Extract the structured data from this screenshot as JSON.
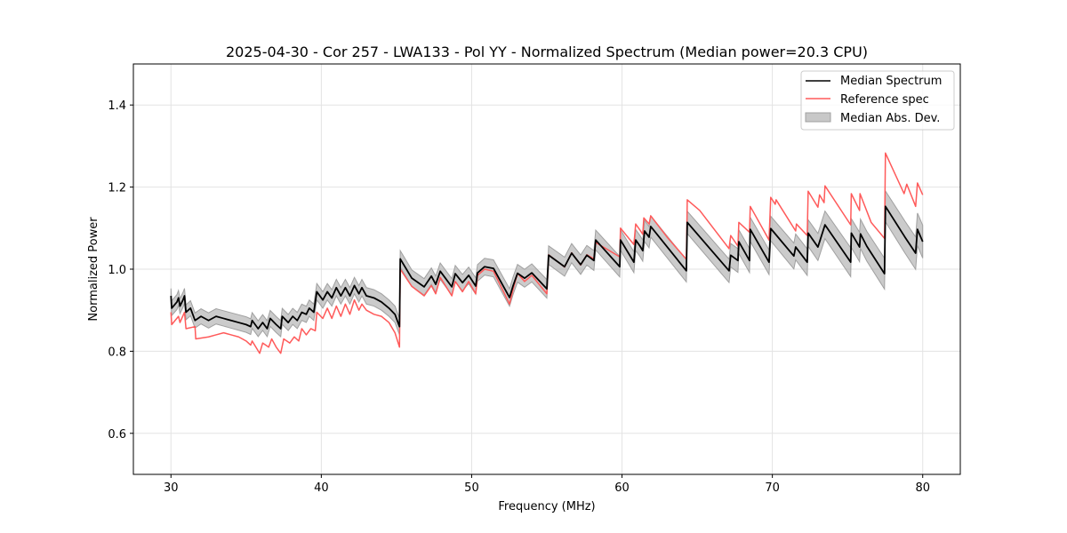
{
  "chart_data": {
    "type": "line",
    "title": "2025-04-30 - Cor 257 - LWA133 - Pol YY - Normalized Spectrum (Median power=20.3 CPU)",
    "xlabel": "Frequency (MHz)",
    "ylabel": "Normalized Power",
    "xlim": [
      27.5,
      82.5
    ],
    "ylim": [
      0.5,
      1.5
    ],
    "xticks": [
      30,
      40,
      50,
      60,
      70,
      80
    ],
    "yticks": [
      0.6,
      0.8,
      1.0,
      1.2,
      1.4
    ],
    "ytick_labels": [
      "0.6",
      "0.8",
      "1.0",
      "1.2",
      "1.4"
    ],
    "grid": true,
    "legend_placement": "top-right",
    "colors": {
      "median": "#000000",
      "reference": "#ff5a5a",
      "mad": "#a0a0a0"
    },
    "legend": [
      "Median Spectrum",
      "Reference spec",
      "Median Abs. Dev."
    ],
    "series": [
      {
        "name": "Median Spectrum",
        "points": [
          [
            30.0,
            0.935
          ],
          [
            30.05,
            0.905
          ],
          [
            30.4,
            0.92
          ],
          [
            30.5,
            0.93
          ],
          [
            30.6,
            0.91
          ],
          [
            30.8,
            0.925
          ],
          [
            30.9,
            0.935
          ],
          [
            31.0,
            0.895
          ],
          [
            31.3,
            0.905
          ],
          [
            31.6,
            0.875
          ],
          [
            32.0,
            0.885
          ],
          [
            32.5,
            0.875
          ],
          [
            33.0,
            0.885
          ],
          [
            33.5,
            0.88
          ],
          [
            34.0,
            0.875
          ],
          [
            34.5,
            0.87
          ],
          [
            35.0,
            0.865
          ],
          [
            35.3,
            0.86
          ],
          [
            35.4,
            0.875
          ],
          [
            35.8,
            0.855
          ],
          [
            36.1,
            0.87
          ],
          [
            36.4,
            0.855
          ],
          [
            36.6,
            0.88
          ],
          [
            37.0,
            0.865
          ],
          [
            37.3,
            0.855
          ],
          [
            37.4,
            0.885
          ],
          [
            37.8,
            0.87
          ],
          [
            38.1,
            0.885
          ],
          [
            38.4,
            0.875
          ],
          [
            38.7,
            0.895
          ],
          [
            39.0,
            0.89
          ],
          [
            39.2,
            0.905
          ],
          [
            39.5,
            0.895
          ],
          [
            39.7,
            0.945
          ],
          [
            40.1,
            0.925
          ],
          [
            40.4,
            0.945
          ],
          [
            40.7,
            0.93
          ],
          [
            41.0,
            0.955
          ],
          [
            41.3,
            0.935
          ],
          [
            41.6,
            0.955
          ],
          [
            41.9,
            0.935
          ],
          [
            42.2,
            0.96
          ],
          [
            42.5,
            0.94
          ],
          [
            42.7,
            0.955
          ],
          [
            43.0,
            0.935
          ],
          [
            43.5,
            0.93
          ],
          [
            44.0,
            0.92
          ],
          [
            44.5,
            0.905
          ],
          [
            44.9,
            0.89
          ],
          [
            45.2,
            0.86
          ],
          [
            45.25,
            1.025
          ],
          [
            46.02,
            0.978
          ],
          [
            46.84,
            0.957
          ],
          [
            47.32,
            0.983
          ],
          [
            47.61,
            0.963
          ],
          [
            47.91,
            0.995
          ],
          [
            48.68,
            0.957
          ],
          [
            48.91,
            0.989
          ],
          [
            49.39,
            0.967
          ],
          [
            49.8,
            0.985
          ],
          [
            50.27,
            0.959
          ],
          [
            50.39,
            0.991
          ],
          [
            50.86,
            1.006
          ],
          [
            51.45,
            1.002
          ],
          [
            52.52,
            0.931
          ],
          [
            52.75,
            0.959
          ],
          [
            53.05,
            0.99
          ],
          [
            53.52,
            0.978
          ],
          [
            54.0,
            0.991
          ],
          [
            55.0,
            0.952
          ],
          [
            55.12,
            1.034
          ],
          [
            56.18,
            1.006
          ],
          [
            56.65,
            1.039
          ],
          [
            57.25,
            1.011
          ],
          [
            57.66,
            1.034
          ],
          [
            58.13,
            1.021
          ],
          [
            58.25,
            1.071
          ],
          [
            59.85,
            1.006
          ],
          [
            59.9,
            1.071
          ],
          [
            60.79,
            1.017
          ],
          [
            60.91,
            1.071
          ],
          [
            61.2,
            1.056
          ],
          [
            61.38,
            1.045
          ],
          [
            61.5,
            1.093
          ],
          [
            61.8,
            1.078
          ],
          [
            61.91,
            1.104
          ],
          [
            64.28,
            0.996
          ],
          [
            64.34,
            1.114
          ],
          [
            67.12,
            0.996
          ],
          [
            67.23,
            1.034
          ],
          [
            67.71,
            1.021
          ],
          [
            67.77,
            1.067
          ],
          [
            68.48,
            1.021
          ],
          [
            68.53,
            1.097
          ],
          [
            69.78,
            1.017
          ],
          [
            69.89,
            1.099
          ],
          [
            70.19,
            1.086
          ],
          [
            71.43,
            1.032
          ],
          [
            71.55,
            1.054
          ],
          [
            72.32,
            1.017
          ],
          [
            72.38,
            1.088
          ],
          [
            73.03,
            1.054
          ],
          [
            73.5,
            1.108
          ],
          [
            75.21,
            1.017
          ],
          [
            75.25,
            1.088
          ],
          [
            75.8,
            1.054
          ],
          [
            75.86,
            1.086
          ],
          [
            76.28,
            1.056
          ],
          [
            77.46,
            0.989
          ],
          [
            77.52,
            1.153
          ],
          [
            78.82,
            1.078
          ],
          [
            79.53,
            1.039
          ],
          [
            79.65,
            1.097
          ],
          [
            80.0,
            1.067
          ]
        ]
      },
      {
        "name": "Reference spec",
        "points": [
          [
            30.0,
            0.895
          ],
          [
            30.05,
            0.865
          ],
          [
            30.5,
            0.885
          ],
          [
            30.6,
            0.87
          ],
          [
            30.9,
            0.895
          ],
          [
            31.0,
            0.855
          ],
          [
            31.6,
            0.86
          ],
          [
            31.65,
            0.83
          ],
          [
            32.5,
            0.835
          ],
          [
            33.0,
            0.84
          ],
          [
            33.5,
            0.845
          ],
          [
            34.0,
            0.84
          ],
          [
            34.5,
            0.835
          ],
          [
            35.0,
            0.825
          ],
          [
            35.3,
            0.815
          ],
          [
            35.4,
            0.825
          ],
          [
            35.9,
            0.795
          ],
          [
            36.1,
            0.82
          ],
          [
            36.5,
            0.81
          ],
          [
            36.7,
            0.83
          ],
          [
            37.0,
            0.81
          ],
          [
            37.3,
            0.795
          ],
          [
            37.5,
            0.83
          ],
          [
            37.9,
            0.82
          ],
          [
            38.2,
            0.835
          ],
          [
            38.5,
            0.825
          ],
          [
            38.7,
            0.855
          ],
          [
            39.0,
            0.84
          ],
          [
            39.3,
            0.855
          ],
          [
            39.6,
            0.85
          ],
          [
            39.7,
            0.895
          ],
          [
            40.1,
            0.88
          ],
          [
            40.4,
            0.905
          ],
          [
            40.7,
            0.88
          ],
          [
            41.0,
            0.91
          ],
          [
            41.3,
            0.885
          ],
          [
            41.6,
            0.915
          ],
          [
            41.9,
            0.89
          ],
          [
            42.2,
            0.925
          ],
          [
            42.5,
            0.9
          ],
          [
            42.7,
            0.915
          ],
          [
            43.0,
            0.9
          ],
          [
            43.5,
            0.89
          ],
          [
            44.0,
            0.885
          ],
          [
            44.5,
            0.87
          ],
          [
            44.9,
            0.845
          ],
          [
            45.2,
            0.81
          ],
          [
            45.25,
            1.0
          ],
          [
            46.02,
            0.958
          ],
          [
            46.84,
            0.935
          ],
          [
            47.32,
            0.96
          ],
          [
            47.61,
            0.94
          ],
          [
            47.91,
            0.98
          ],
          [
            48.68,
            0.935
          ],
          [
            48.91,
            0.97
          ],
          [
            49.39,
            0.945
          ],
          [
            49.8,
            0.97
          ],
          [
            50.27,
            0.94
          ],
          [
            50.39,
            0.985
          ],
          [
            50.86,
            1.0
          ],
          [
            51.45,
            0.995
          ],
          [
            52.52,
            0.915
          ],
          [
            52.75,
            0.95
          ],
          [
            53.05,
            0.99
          ],
          [
            53.52,
            0.97
          ],
          [
            54.0,
            0.985
          ],
          [
            55.0,
            0.94
          ],
          [
            55.12,
            1.035
          ],
          [
            56.18,
            1.005
          ],
          [
            56.65,
            1.04
          ],
          [
            57.25,
            1.01
          ],
          [
            57.66,
            1.035
          ],
          [
            58.13,
            1.025
          ],
          [
            58.25,
            1.065
          ],
          [
            59.85,
            1.03
          ],
          [
            59.9,
            1.1
          ],
          [
            60.79,
            1.06
          ],
          [
            60.91,
            1.11
          ],
          [
            61.2,
            1.095
          ],
          [
            61.38,
            1.085
          ],
          [
            61.45,
            1.125
          ],
          [
            61.8,
            1.11
          ],
          [
            61.91,
            1.13
          ],
          [
            63.0,
            1.078
          ],
          [
            64.28,
            1.024
          ],
          [
            64.34,
            1.169
          ],
          [
            65.17,
            1.143
          ],
          [
            67.12,
            1.05
          ],
          [
            67.23,
            1.082
          ],
          [
            67.71,
            1.056
          ],
          [
            67.77,
            1.114
          ],
          [
            68.48,
            1.09
          ],
          [
            68.53,
            1.153
          ],
          [
            69.78,
            1.071
          ],
          [
            69.89,
            1.175
          ],
          [
            70.19,
            1.158
          ],
          [
            70.25,
            1.169
          ],
          [
            71.55,
            1.093
          ],
          [
            71.6,
            1.11
          ],
          [
            72.32,
            1.082
          ],
          [
            72.38,
            1.19
          ],
          [
            73.03,
            1.151
          ],
          [
            73.14,
            1.181
          ],
          [
            73.44,
            1.162
          ],
          [
            73.5,
            1.203
          ],
          [
            75.21,
            1.108
          ],
          [
            75.25,
            1.184
          ],
          [
            75.8,
            1.143
          ],
          [
            75.83,
            1.184
          ],
          [
            76.57,
            1.114
          ],
          [
            77.46,
            1.075
          ],
          [
            77.52,
            1.283
          ],
          [
            78.76,
            1.184
          ],
          [
            78.94,
            1.207
          ],
          [
            79.53,
            1.153
          ],
          [
            79.65,
            1.21
          ],
          [
            80.0,
            1.181
          ]
        ]
      }
    ],
    "mad_halfwidth": {
      "freqs": [
        30,
        40,
        50,
        60,
        70,
        80
      ],
      "values": [
        0.018,
        0.02,
        0.02,
        0.025,
        0.03,
        0.04
      ]
    }
  }
}
